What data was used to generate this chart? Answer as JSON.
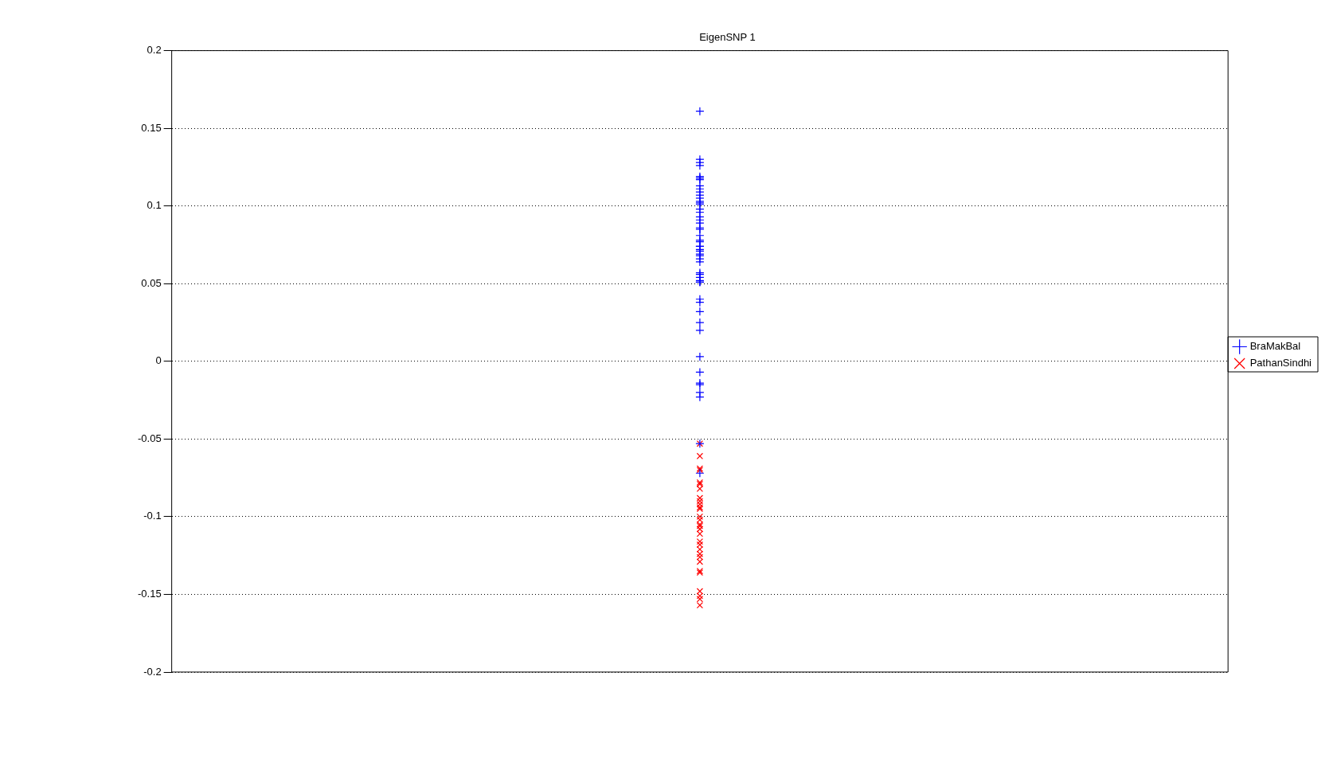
{
  "chart_data": {
    "type": "scatter",
    "title": "EigenSNP 1",
    "categories": [
      null
    ],
    "ylim": [
      -0.2,
      0.2
    ],
    "yticks": [
      -0.2,
      -0.15,
      -0.1,
      -0.05,
      0,
      0.05,
      0.1,
      0.15,
      0.2
    ],
    "tick_labels": "y",
    "grid": "y",
    "legend": "right",
    "series": [
      {
        "name": "BraMakBal",
        "color": "#0000ff",
        "marker": "cross",
        "x": [
          null,
          null,
          null,
          null,
          null,
          null,
          null,
          null,
          null,
          null,
          null,
          null,
          null,
          null,
          null,
          null,
          null,
          null,
          null,
          null,
          null,
          null,
          null,
          null,
          null,
          null,
          null,
          null,
          null,
          null,
          null,
          null,
          null,
          null,
          null,
          null,
          null,
          null,
          null,
          null,
          null,
          null,
          null,
          null,
          null,
          null,
          null,
          null,
          null,
          null,
          null,
          null
        ],
        "values": [
          0.161,
          0.13,
          0.128,
          0.126,
          0.119,
          0.118,
          0.117,
          0.113,
          0.111,
          0.109,
          0.107,
          0.105,
          0.103,
          0.102,
          0.101,
          0.098,
          0.096,
          0.093,
          0.091,
          0.089,
          0.086,
          0.085,
          0.081,
          0.078,
          0.077,
          0.074,
          0.074,
          0.072,
          0.071,
          0.069,
          0.068,
          0.066,
          0.064,
          0.057,
          0.056,
          0.054,
          0.052,
          0.051,
          0.051,
          0.04,
          0.038,
          0.032,
          0.025,
          0.02,
          0.003,
          -0.007,
          -0.014,
          -0.015,
          -0.02,
          -0.023,
          -0.053,
          -0.072
        ]
      },
      {
        "name": "PathanSindhi",
        "color": "#ff0000",
        "marker": "x",
        "x": [
          null,
          null,
          null,
          null,
          null,
          null,
          null,
          null,
          null,
          null,
          null,
          null,
          null,
          null,
          null,
          null,
          null,
          null,
          null,
          null,
          null,
          null,
          null,
          null,
          null,
          null,
          null,
          null,
          null,
          null
        ],
        "values": [
          -0.053,
          -0.061,
          -0.069,
          -0.07,
          -0.078,
          -0.079,
          -0.082,
          -0.088,
          -0.09,
          -0.092,
          -0.094,
          -0.095,
          -0.1,
          -0.102,
          -0.105,
          -0.106,
          -0.108,
          -0.111,
          -0.116,
          -0.118,
          -0.121,
          -0.124,
          -0.126,
          -0.129,
          -0.135,
          -0.136,
          -0.148,
          -0.151,
          -0.153,
          -0.157
        ]
      }
    ]
  }
}
